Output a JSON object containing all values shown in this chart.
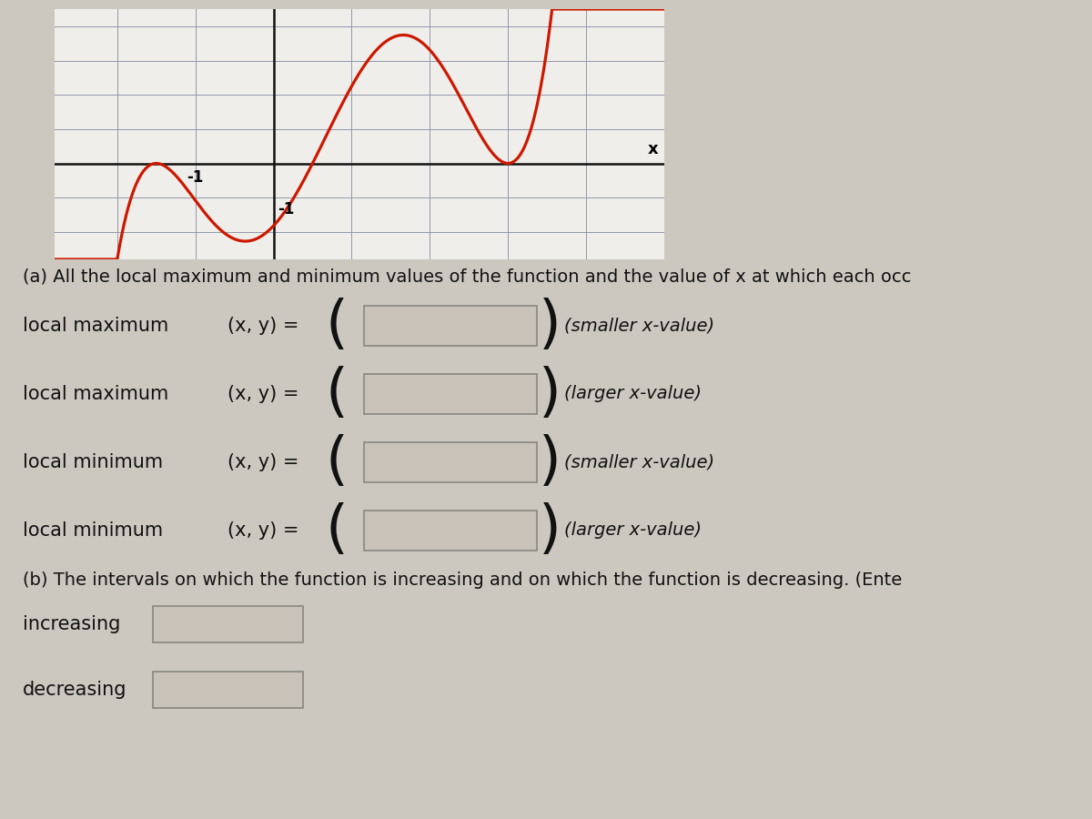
{
  "bg_color": "#ccc8c0",
  "graph_bg": "#f0eeea",
  "grid_color": "#9098aa",
  "curve_color": "#cc1800",
  "axis_color": "#111111",
  "text_color": "#111111",
  "box_fill": "#c8c2b8",
  "box_border": "#888880",
  "title_a": "(a) All the local maximum and minimum values of the function and the value of x at which each occ",
  "title_b": "(b) The intervals on which the function is increasing and on which the function is decreasing. (Ente",
  "rows": [
    {
      "label": "local maximum",
      "hint": "(smaller x-value)"
    },
    {
      "label": "local maximum",
      "hint": "(larger x-value)"
    },
    {
      "label": "local minimum",
      "hint": "(smaller x-value)"
    },
    {
      "label": "local minimum",
      "hint": "(larger x-value)"
    }
  ],
  "row_labels_b": [
    "increasing",
    "decreasing"
  ],
  "xy_eq": "(x, y) =",
  "graph_xlim": [
    -2.8,
    5.0
  ],
  "graph_ylim": [
    -2.8,
    4.5
  ],
  "x_tick_label_val": -1,
  "x_tick_label_pos": [
    -1,
    -0.18
  ],
  "y_tick_label_val": -1,
  "y_tick_label_pos": [
    0.05,
    -1.1
  ],
  "x_axis_label": "x"
}
